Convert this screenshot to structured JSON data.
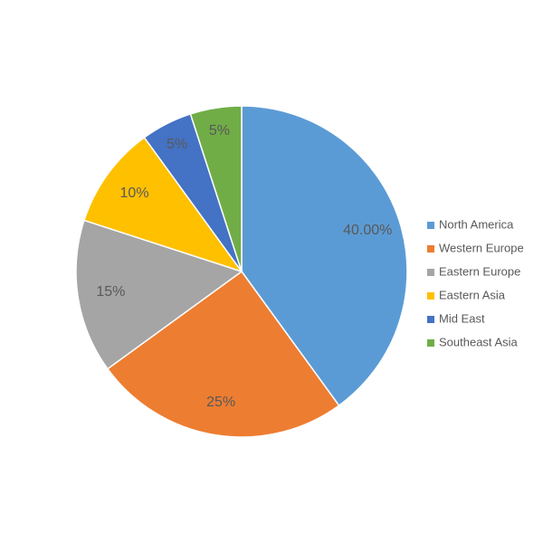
{
  "chart_data": {
    "type": "pie",
    "categories": [
      "North America",
      "Western Europe",
      "Eastern Europe",
      "Eastern Asia",
      "Mid East",
      "Southeast Asia"
    ],
    "values": [
      40,
      25,
      15,
      10,
      5,
      5
    ],
    "value_labels": [
      "40.00%",
      "25%",
      "15%",
      "10%",
      "5%",
      "5%"
    ],
    "colors": [
      "#5b9bd5",
      "#ed7d31",
      "#a5a5a5",
      "#ffc000",
      "#4472c4",
      "#70ad47"
    ],
    "legend": "right"
  }
}
